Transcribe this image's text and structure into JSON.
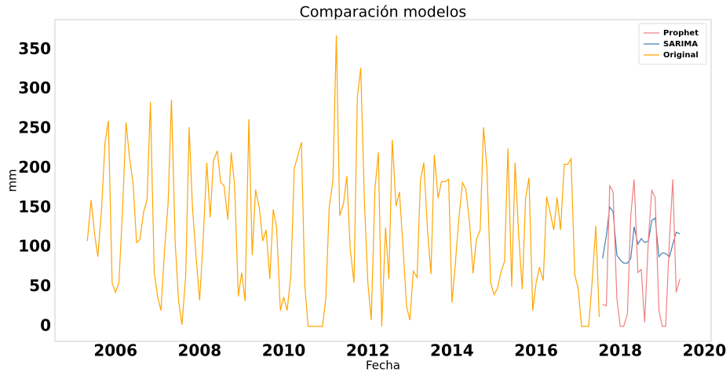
{
  "chart_data": {
    "type": "line",
    "title": "Comparación modelos",
    "x_label": "Fecha",
    "y_label": "mm",
    "xlim": [
      2004.56,
      2020.16
    ],
    "ylim": [
      -19,
      388
    ],
    "xticks": [
      2006,
      2008,
      2010,
      2012,
      2014,
      2016,
      2018,
      2020
    ],
    "yticks": [
      0,
      50,
      100,
      150,
      200,
      250,
      300,
      350
    ],
    "grid": false,
    "legend": "upper right",
    "series": [
      {
        "name": "Prophet",
        "color": "#f08080",
        "x": [
          2017.58,
          2017.67,
          2017.75,
          2017.83,
          2017.92,
          2018.0,
          2018.08,
          2018.17,
          2018.25,
          2018.33,
          2018.42,
          2018.5,
          2018.58,
          2018.67,
          2018.75,
          2018.83,
          2018.92,
          2019.0,
          2019.08,
          2019.17,
          2019.25,
          2019.33,
          2019.42
        ],
        "values": [
          28,
          26,
          178,
          170,
          35,
          0,
          0,
          15,
          140,
          186,
          68,
          72,
          5,
          110,
          172,
          163,
          20,
          0,
          0,
          110,
          186,
          43,
          60
        ]
      },
      {
        "name": "SARIMA",
        "color": "#4682b4",
        "x": [
          2017.58,
          2017.67,
          2017.75,
          2017.83,
          2017.92,
          2018.0,
          2018.08,
          2018.17,
          2018.25,
          2018.33,
          2018.42,
          2018.5,
          2018.58,
          2018.67,
          2018.75,
          2018.83,
          2018.92,
          2019.0,
          2019.08,
          2019.17,
          2019.25,
          2019.33,
          2019.42
        ],
        "values": [
          86,
          115,
          151,
          145,
          90,
          84,
          80,
          80,
          86,
          126,
          104,
          111,
          106,
          108,
          134,
          137,
          88,
          93,
          92,
          88,
          104,
          119,
          117
        ]
      },
      {
        "name": "Original",
        "color": "#ffa500",
        "x": [
          2005.33,
          2005.42,
          2005.5,
          2005.58,
          2005.67,
          2005.75,
          2005.83,
          2005.92,
          2006.0,
          2006.08,
          2006.17,
          2006.25,
          2006.33,
          2006.42,
          2006.5,
          2006.58,
          2006.67,
          2006.75,
          2006.83,
          2006.92,
          2007.0,
          2007.08,
          2007.17,
          2007.25,
          2007.33,
          2007.42,
          2007.5,
          2007.58,
          2007.67,
          2007.75,
          2007.83,
          2007.92,
          2008.0,
          2008.08,
          2008.17,
          2008.25,
          2008.33,
          2008.42,
          2008.5,
          2008.58,
          2008.67,
          2008.75,
          2008.83,
          2008.92,
          2009.0,
          2009.08,
          2009.17,
          2009.25,
          2009.33,
          2009.42,
          2009.5,
          2009.58,
          2009.67,
          2009.75,
          2009.83,
          2009.92,
          2010.0,
          2010.08,
          2010.17,
          2010.25,
          2010.33,
          2010.42,
          2010.5,
          2010.58,
          2010.67,
          2010.75,
          2010.83,
          2010.92,
          2011.0,
          2011.08,
          2011.17,
          2011.25,
          2011.33,
          2011.42,
          2011.5,
          2011.58,
          2011.67,
          2011.75,
          2011.83,
          2011.92,
          2012.0,
          2012.08,
          2012.17,
          2012.25,
          2012.33,
          2012.42,
          2012.5,
          2012.58,
          2012.67,
          2012.75,
          2012.83,
          2012.92,
          2013.0,
          2013.08,
          2013.17,
          2013.25,
          2013.33,
          2013.42,
          2013.5,
          2013.58,
          2013.67,
          2013.75,
          2013.83,
          2013.92,
          2014.0,
          2014.08,
          2014.17,
          2014.25,
          2014.33,
          2014.42,
          2014.5,
          2014.58,
          2014.67,
          2014.75,
          2014.83,
          2014.92,
          2015.0,
          2015.08,
          2015.17,
          2015.25,
          2015.33,
          2015.42,
          2015.5,
          2015.58,
          2015.67,
          2015.75,
          2015.83,
          2015.92,
          2016.0,
          2016.08,
          2016.17,
          2016.25,
          2016.33,
          2016.42,
          2016.5,
          2016.58,
          2016.67,
          2016.75,
          2016.83,
          2016.92,
          2017.0,
          2017.08,
          2017.17,
          2017.25,
          2017.33,
          2017.42,
          2017.5
        ],
        "values": [
          108,
          160,
          118,
          88,
          150,
          232,
          260,
          55,
          43,
          55,
          150,
          258,
          215,
          180,
          106,
          110,
          145,
          160,
          284,
          68,
          38,
          20,
          100,
          155,
          287,
          105,
          32,
          2,
          65,
          252,
          150,
          85,
          33,
          105,
          207,
          138,
          210,
          222,
          182,
          178,
          135,
          220,
          180,
          38,
          68,
          32,
          262,
          90,
          173,
          150,
          108,
          122,
          60,
          148,
          125,
          20,
          37,
          20,
          65,
          200,
          215,
          233,
          52,
          0,
          0,
          0,
          0,
          0,
          35,
          150,
          185,
          368,
          140,
          155,
          190,
          98,
          55,
          290,
          327,
          155,
          55,
          8,
          175,
          220,
          0,
          125,
          60,
          236,
          152,
          170,
          105,
          25,
          8,
          70,
          62,
          185,
          207,
          120,
          66,
          217,
          162,
          183,
          183,
          186,
          30,
          80,
          140,
          182,
          173,
          130,
          67,
          110,
          122,
          252,
          200,
          55,
          40,
          48,
          70,
          82,
          225,
          50,
          207,
          120,
          47,
          162,
          188,
          20,
          55,
          75,
          58,
          164,
          145,
          122,
          163,
          122,
          205,
          205,
          212,
          65,
          48,
          0,
          0,
          0,
          55,
          127,
          12
        ]
      }
    ]
  }
}
